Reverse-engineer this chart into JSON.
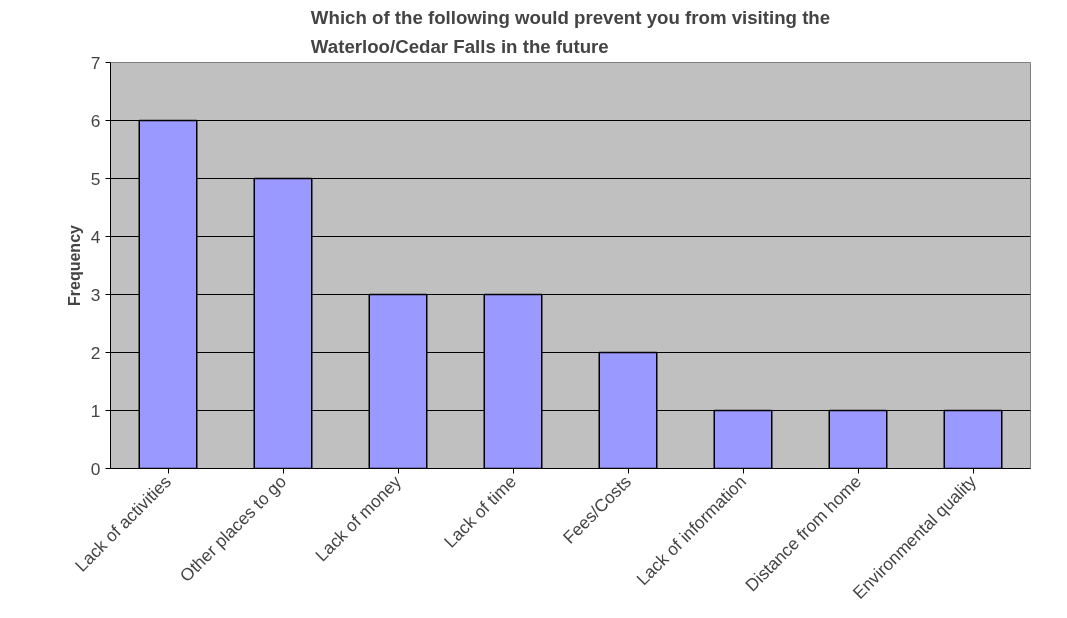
{
  "chart_data": {
    "type": "bar",
    "title": "Which of the following would prevent you from visiting the Waterloo/Cedar Falls in the future",
    "ylabel": "Frequency",
    "categories": [
      "Lack of activities",
      "Other places to go",
      "Lack of money",
      "Lack of time",
      "Fees/Costs",
      "Lack of information",
      "Distance from home",
      "Environmental quality"
    ],
    "values": [
      6,
      5,
      3,
      3,
      2,
      1,
      1,
      1
    ],
    "color": "#9999ff",
    "ylim": [
      0,
      7
    ],
    "yticks": [
      0,
      1,
      2,
      3,
      4,
      5,
      6,
      7
    ],
    "grid": "y"
  }
}
